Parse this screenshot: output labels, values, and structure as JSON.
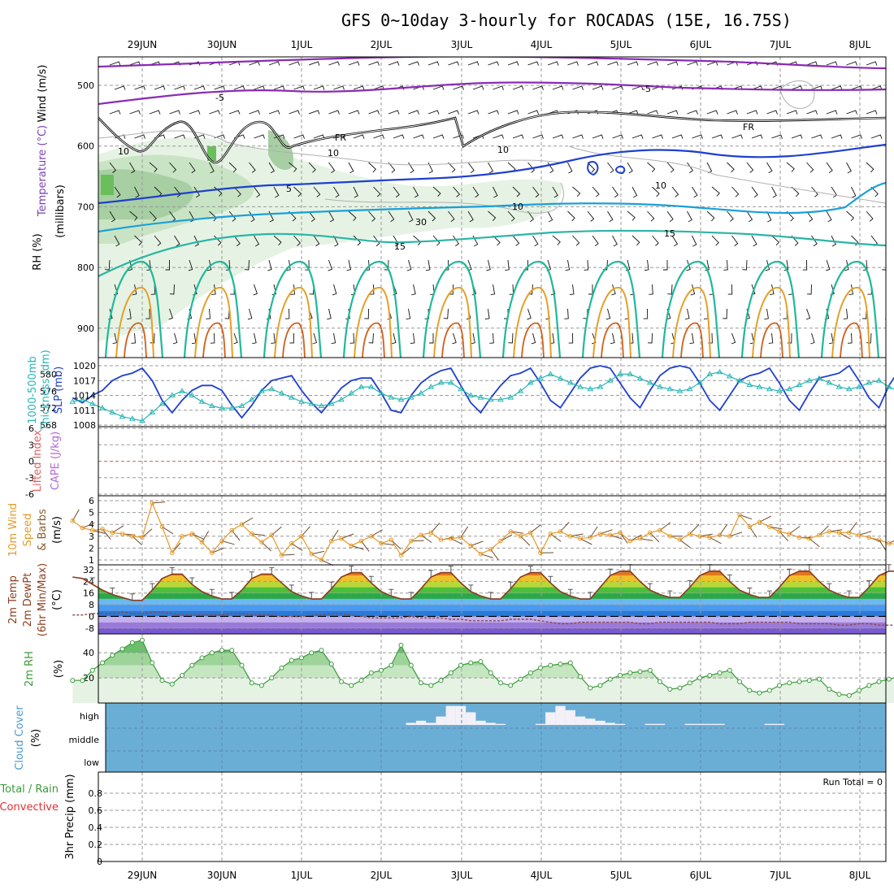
{
  "title": "GFS 0~10day 3-hourly for ROCADAS (15E, 16.75S)",
  "dates": [
    "29JUN",
    "30JUN",
    "1JUL",
    "2JUL",
    "3JUL",
    "4JUL",
    "5JUL",
    "6JUL",
    "7JUL",
    "8JUL"
  ],
  "colors": {
    "grid": "#999999",
    "slp": "#1f3fcf",
    "thick": "#2ab5b5",
    "wind10": "#e49a2a",
    "rh": "#3a9a3a",
    "cloud": "#6aaed6",
    "cloudfill": "#f4f0f8",
    "lifted": "#e06060",
    "temp_warm": "#e0781e",
    "temp_hot": "#c04a10",
    "green": "#4cbf3a",
    "blue": "#4a8fe0",
    "violet": "#9a7ad8"
  },
  "panels": {
    "upper": {
      "ylabel": "(millibars)",
      "side_wind": "Wind (m/s)",
      "side_temp": "Temperature (°C)",
      "side_rh": "RH (%)",
      "yticks": [
        500,
        600,
        700,
        800,
        900
      ],
      "contour_labels": {
        "m5a": "-5",
        "m5b": "-5",
        "fr1": "FR",
        "fr2": "FR",
        "p5": "5",
        "p10": "10",
        "p15a": "15",
        "p15b": "15",
        "g10a": "10",
        "g10b": "10",
        "g30": "30",
        "g10c": "10",
        "g10d": "10"
      }
    },
    "thickness": {
      "side_a": "1000-500mb",
      "side_b": "Thickness (dm)",
      "side_c": "SLP (mb)",
      "yticks_left": [
        568,
        572,
        576,
        580
      ],
      "yticks_right": [
        1008,
        1011,
        1014,
        1017,
        1020
      ]
    },
    "lifted": {
      "side_a": "Lifted Index",
      "side_b": "CAPE (J/kg)",
      "yticks": [
        6,
        3,
        0,
        -3,
        -6
      ]
    },
    "wind10": {
      "side_a": "10m Wind",
      "side_b": "Speed",
      "side_c": "& Barbs",
      "side_d": "(m/s)",
      "yticks": [
        1,
        2,
        3,
        4,
        5,
        6
      ]
    },
    "temp2m": {
      "side_a": "2m Temp",
      "side_b": "2m DewPt",
      "side_c": "(6hr Min/Max)",
      "side_d": "(°C)",
      "yticks": [
        32,
        24,
        16,
        8,
        0,
        -8
      ]
    },
    "rh2m": {
      "side_a": "2m RH",
      "side_b": "(%)",
      "yticks": [
        20,
        40
      ]
    },
    "cloud": {
      "side_a": "Cloud Cover",
      "side_b": "(%)",
      "levels": [
        "high",
        "middle",
        "low"
      ]
    },
    "precip": {
      "side_a": "Total / Rain",
      "side_b": "Convective",
      "side_c": "3hr Precip (mm)",
      "run_total": "Run Total = 0",
      "yticks": [
        "0",
        "0.2",
        "0.4",
        "0.6",
        "0.8"
      ]
    }
  },
  "chart_data": [
    {
      "type": "line",
      "name": "SLP (mb)",
      "ylim": [
        1008,
        1020
      ],
      "x_index": "3-hourly steps from 28JUN 12Z",
      "values": [
        1013.5,
        1012.5,
        1014,
        1015,
        1017,
        1018,
        1018.5,
        1019.5,
        1017,
        1013,
        1010.5,
        1013,
        1015,
        1016,
        1016,
        1015,
        1012,
        1009.5,
        1012,
        1015,
        1017,
        1017.5,
        1018,
        1015,
        1012.5,
        1010.5,
        1013,
        1015.5,
        1017,
        1017.5,
        1017.5,
        1014.5,
        1011,
        1010.5,
        1014,
        1016.5,
        1018,
        1019,
        1019.5,
        1016,
        1012.5,
        1010.5,
        1013.5,
        1016,
        1018,
        1018.5,
        1019.5,
        1016.5,
        1013,
        1011.5,
        1014.5,
        1017.5,
        1019.5,
        1020,
        1019.5,
        1016.5,
        1013.5,
        1011.5,
        1015,
        1018,
        1019.5,
        1020,
        1019.5,
        1016.5,
        1013,
        1011,
        1014,
        1017,
        1018,
        1018.5,
        1019.5,
        1016.5,
        1013,
        1011,
        1014.5,
        1017.5,
        1018,
        1018.5,
        1020,
        1017,
        1013.5,
        1011.5,
        1016,
        1019,
        1020
      ]
    },
    {
      "type": "line",
      "name": "1000-500mb Thickness (dm)",
      "ylim": [
        568,
        582
      ],
      "values": [
        573.5,
        574,
        573,
        572,
        571,
        570,
        569.5,
        569,
        571,
        573,
        575,
        576,
        575,
        573.5,
        572.5,
        572,
        572,
        572.5,
        574,
        576,
        576.5,
        575.5,
        574.5,
        573.5,
        573,
        572.5,
        573,
        574,
        575.5,
        577,
        577,
        575.5,
        574.5,
        574,
        574.5,
        575.5,
        577,
        578,
        578,
        576.5,
        575,
        574.5,
        574,
        574,
        574.5,
        576,
        578,
        579,
        580,
        579,
        578,
        577,
        576.5,
        577,
        578.5,
        580,
        580,
        579,
        578,
        577,
        576.5,
        576,
        576.5,
        578,
        580,
        580.5,
        579.5,
        578.5,
        577.5,
        577,
        576.5,
        576,
        576.5,
        577.5,
        578.5,
        579,
        578,
        577,
        576.5,
        577,
        578,
        578.5,
        577,
        576,
        575
      ]
    },
    {
      "type": "line",
      "name": "10m Wind Speed (m/s)",
      "ylim": [
        1,
        6
      ],
      "values": [
        4.3,
        3.7,
        3.5,
        3.6,
        3.3,
        3.2,
        3.0,
        2.9,
        5.8,
        3.8,
        1.6,
        3.0,
        3.2,
        2.5,
        1.6,
        2.6,
        3.5,
        4.0,
        3.2,
        2.5,
        3.1,
        1.4,
        2.4,
        3.0,
        1.5,
        1.0,
        2.6,
        2.8,
        2.2,
        2.6,
        3.0,
        2.4,
        2.7,
        1.4,
        2.6,
        3.1,
        3.3,
        2.7,
        2.8,
        2.9,
        2.2,
        1.5,
        1.9,
        2.6,
        3.4,
        3.0,
        3.3,
        1.6,
        3.2,
        3.4,
        3.0,
        2.8,
        2.9,
        3.2,
        3.1,
        3.3,
        2.6,
        2.8,
        3.3,
        3.5,
        3.0,
        2.7,
        3.2,
        3.0,
        2.9,
        3.1,
        3.0,
        4.8,
        3.8,
        4.2,
        3.8,
        3.4,
        3.2,
        2.9,
        2.8,
        3.1,
        3.4,
        3.3,
        3.3,
        3.1,
        2.9,
        2.7,
        2.4,
        2.3,
        2.1
      ],
      "ylabel": "(m/s)"
    },
    {
      "type": "area",
      "name": "2m RH (%)",
      "ylim": [
        0,
        55
      ],
      "values": [
        18,
        18,
        26,
        32,
        38,
        43,
        48,
        50,
        32,
        18,
        15,
        22,
        30,
        36,
        40,
        42,
        42,
        30,
        16,
        14,
        20,
        28,
        34,
        36,
        40,
        42,
        31,
        17,
        14,
        18,
        24,
        26,
        30,
        46,
        30,
        16,
        14,
        18,
        24,
        30,
        32,
        33,
        24,
        16,
        14,
        19,
        24,
        28,
        30,
        31,
        32,
        21,
        12,
        14,
        19,
        22,
        24,
        25,
        26,
        17,
        11,
        12,
        16,
        20,
        22,
        24,
        26,
        17,
        10,
        8,
        10,
        14,
        16,
        17,
        18,
        19,
        11,
        7,
        6,
        10,
        14,
        17,
        19,
        21,
        23
      ]
    },
    {
      "type": "area",
      "name": "2m Temp (°C)",
      "ylim": [
        -12,
        32
      ],
      "values": [
        27,
        26,
        22,
        18,
        15,
        13,
        11,
        11,
        18,
        26,
        29,
        29,
        22,
        17,
        14,
        12,
        12,
        18,
        26,
        29,
        29,
        23,
        17,
        14,
        12,
        12,
        19,
        27,
        30,
        30,
        23,
        17,
        14,
        12,
        12,
        19,
        27,
        30,
        30,
        23,
        17,
        14,
        12,
        12,
        19,
        27,
        30,
        30,
        23,
        17,
        14,
        12,
        12,
        20,
        28,
        31,
        31,
        24,
        18,
        15,
        13,
        13,
        20,
        28,
        31,
        31,
        24,
        18,
        15,
        13,
        13,
        20,
        28,
        31,
        31,
        24,
        18,
        15,
        13,
        13,
        20,
        28,
        31,
        31,
        24
      ]
    },
    {
      "type": "line",
      "name": "2m DewPt (°C)",
      "ylim": [
        -12,
        32
      ],
      "values": [
        1,
        1,
        2,
        2,
        2,
        3,
        2,
        2,
        3,
        3,
        2,
        1,
        1,
        1,
        1,
        1,
        2,
        2,
        1,
        1,
        1,
        0,
        0,
        0,
        1,
        1,
        2,
        2,
        1,
        0,
        -1,
        -1,
        -1,
        -1,
        0,
        -1,
        -1,
        -1,
        -2,
        -2,
        -3,
        -3,
        -3,
        -3,
        -2,
        -2,
        -2,
        -3,
        -4,
        -5,
        -5,
        -4,
        -4,
        -4,
        -4,
        -4,
        -4,
        -5,
        -5,
        -4,
        -4,
        -4,
        -4,
        -4,
        -4,
        -5,
        -5,
        -5,
        -4,
        -4,
        -4,
        -4,
        -4,
        -5,
        -5,
        -5,
        -5,
        -6,
        -6,
        -5,
        -5,
        -6,
        -6,
        -6,
        -5
      ]
    },
    {
      "type": "bar",
      "name": "Cloud Cover high (%)",
      "note": "high-level cloud cover, 3-hourly",
      "values": [
        0,
        0,
        0,
        0,
        0,
        0,
        0,
        0,
        0,
        0,
        0,
        0,
        0,
        0,
        0,
        0,
        0,
        0,
        0,
        0,
        0,
        0,
        0,
        0,
        0,
        0,
        0,
        0,
        0,
        0,
        0,
        0,
        0,
        0,
        10,
        20,
        10,
        40,
        90,
        90,
        60,
        20,
        10,
        5,
        0,
        0,
        0,
        5,
        60,
        90,
        70,
        40,
        30,
        20,
        10,
        5,
        0,
        0,
        5,
        5,
        0,
        0,
        5,
        5,
        5,
        5,
        0,
        0,
        0,
        0,
        5,
        5,
        0,
        0,
        0,
        0,
        0,
        0,
        0,
        0,
        0,
        0,
        0,
        0,
        0
      ]
    },
    {
      "type": "bar",
      "name": "3hr Precip (mm)",
      "ylim": [
        0,
        1
      ],
      "values": []
    }
  ]
}
